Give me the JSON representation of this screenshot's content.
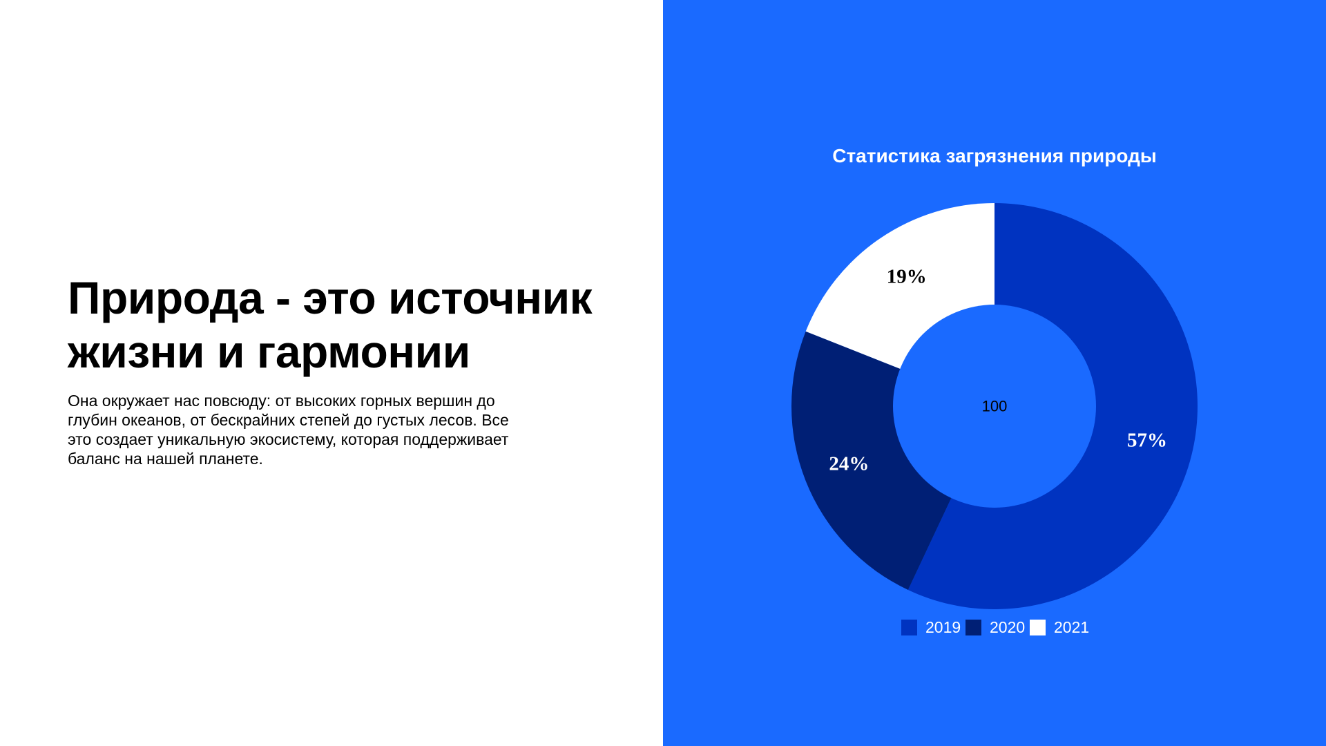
{
  "slide": {
    "heading": "Природа - это источник жизни и гармонии",
    "body": "Она окружает нас повсюду: от высоких горных вершин до глубин океанов, от бескрайних степей до густых лесов. Все это создает уникальную экосистему, которая поддерживает баланс на нашей планете."
  },
  "colors": {
    "panel_background": "#1a6aff",
    "series_2019": "#0033c0",
    "series_2020": "#001f75",
    "series_2021": "#ffffff"
  },
  "chart_data": {
    "type": "pie",
    "donut": true,
    "title": "Статистика загрязнения природы",
    "center_label": "100",
    "legend_position": "bottom",
    "categories": [
      "2019",
      "2020",
      "2021"
    ],
    "values": [
      57,
      24,
      19
    ],
    "value_labels": [
      "57%",
      "24%",
      "19%"
    ],
    "colors": [
      "#0033c0",
      "#001f75",
      "#ffffff"
    ],
    "label_colors": [
      "#ffffff",
      "#ffffff",
      "#000000"
    ]
  }
}
